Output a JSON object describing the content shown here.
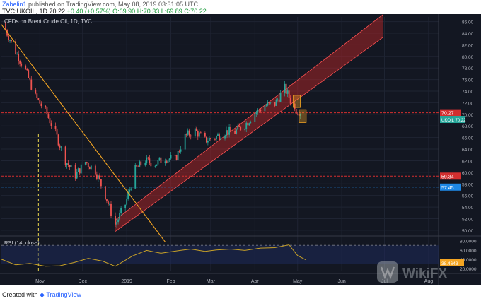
{
  "header": {
    "author": "Zabelin1",
    "published_text": "published on TradingView.com, May 08, 2019 03:31:05 UTC",
    "ticker": "TVC:UKOIL, 1D",
    "last": "70.22",
    "change": "+0.40 (+0.57%)",
    "open": "O:69.90",
    "high": "H:70.33",
    "low": "L:69.89",
    "close": "C:70.22"
  },
  "chart_data": {
    "type": "candlestick",
    "title": "CFDs on Brent Crude Oil, 1D, TVC",
    "x_tick_labels": [
      "Nov",
      "Dec",
      "2019",
      "Feb",
      "Mar",
      "Apr",
      "May",
      "Jun",
      "Jul",
      "Aug"
    ],
    "y_tick_labels": [
      "86.00",
      "84.00",
      "82.00",
      "80.00",
      "78.00",
      "76.00",
      "74.00",
      "72.00",
      "70.00",
      "68.00",
      "66.00",
      "64.00",
      "62.00",
      "60.00",
      "58.00",
      "56.00",
      "54.00",
      "52.00",
      "50.00"
    ],
    "ylim": [
      49.5,
      86.8
    ],
    "price_path": [
      {
        "date": "2018-10-08",
        "close": 84.5
      },
      {
        "date": "2018-10-15",
        "close": 80.8
      },
      {
        "date": "2018-10-22",
        "close": 77.5
      },
      {
        "date": "2018-10-29",
        "close": 73.0
      },
      {
        "date": "2018-11-05",
        "close": 70.5
      },
      {
        "date": "2018-11-12",
        "close": 66.8
      },
      {
        "date": "2018-11-19",
        "close": 62.0
      },
      {
        "date": "2018-11-26",
        "close": 59.5
      },
      {
        "date": "2018-12-03",
        "close": 61.8
      },
      {
        "date": "2018-12-10",
        "close": 60.3
      },
      {
        "date": "2018-12-17",
        "close": 56.0
      },
      {
        "date": "2018-12-24",
        "close": 51.0
      },
      {
        "date": "2018-12-31",
        "close": 54.5
      },
      {
        "date": "2019-01-07",
        "close": 60.5
      },
      {
        "date": "2019-01-14",
        "close": 62.0
      },
      {
        "date": "2019-01-21",
        "close": 61.5
      },
      {
        "date": "2019-01-28",
        "close": 62.5
      },
      {
        "date": "2019-02-04",
        "close": 62.2
      },
      {
        "date": "2019-02-11",
        "close": 66.2
      },
      {
        "date": "2019-02-18",
        "close": 67.2
      },
      {
        "date": "2019-02-25",
        "close": 65.5
      },
      {
        "date": "2019-03-04",
        "close": 66.0
      },
      {
        "date": "2019-03-11",
        "close": 67.0
      },
      {
        "date": "2019-03-18",
        "close": 67.0
      },
      {
        "date": "2019-03-25",
        "close": 68.2
      },
      {
        "date": "2019-04-01",
        "close": 70.2
      },
      {
        "date": "2019-04-08",
        "close": 71.5
      },
      {
        "date": "2019-04-15",
        "close": 71.8
      },
      {
        "date": "2019-04-22",
        "close": 74.5
      },
      {
        "date": "2019-04-29",
        "close": 70.8
      },
      {
        "date": "2019-05-06",
        "close": 70.22
      }
    ],
    "horizontal_levels": [
      {
        "label": "70.27",
        "value": 70.27,
        "color": "#d32f2f",
        "style": "dashed"
      },
      {
        "label": "59.34",
        "value": 59.34,
        "color": "#d32f2f",
        "style": "dashed"
      },
      {
        "label": "57.45",
        "value": 57.45,
        "color": "#1e88e5",
        "style": "dashed"
      }
    ],
    "price_label": {
      "text": "UKOIL",
      "value": 70.22,
      "value_text": "70.22",
      "color": "#26a69a"
    },
    "downtrend_line": {
      "from": {
        "date": "2018-10-05",
        "price": 85.5
      },
      "to": {
        "date": "2019-01-28",
        "price": 48.0
      },
      "color": "#f5a623"
    },
    "uptrend_channel": {
      "from": {
        "date": "2018-12-24",
        "lower": 49.8,
        "upper": 51.8
      },
      "to": {
        "date": "2019-06-30",
        "lower": 83.3,
        "upper": 87.2
      },
      "color": "#c62828"
    },
    "vertical_marker": {
      "date": "2018-10-31",
      "color": "#e8d44d",
      "style": "dashed"
    },
    "highlight_boxes": [
      {
        "from": "2019-04-29",
        "to": "2019-05-02",
        "low": 71.2,
        "high": 73.3,
        "color": "#f5a623"
      },
      {
        "from": "2019-05-03",
        "to": "2019-05-06",
        "low": 68.6,
        "high": 70.8,
        "color": "#f5a623"
      }
    ],
    "colors": {
      "background": "#131722",
      "up": "#26a69a",
      "down": "#ef5350"
    }
  },
  "rsi": {
    "title": "RSI (14, close)",
    "tick_labels": [
      "80.0000",
      "60.0000",
      "40.0000",
      "20.0000"
    ],
    "current_text": "38.4643",
    "ylim": [
      14,
      84
    ],
    "overbought": 70,
    "oversold": 30,
    "series": [
      {
        "date": "2018-10-05",
        "value": 40
      },
      {
        "date": "2018-10-15",
        "value": 28
      },
      {
        "date": "2018-10-25",
        "value": 31
      },
      {
        "date": "2018-11-05",
        "value": 25
      },
      {
        "date": "2018-11-15",
        "value": 26
      },
      {
        "date": "2018-11-25",
        "value": 33
      },
      {
        "date": "2018-12-05",
        "value": 42
      },
      {
        "date": "2018-12-15",
        "value": 36
      },
      {
        "date": "2018-12-24",
        "value": 25
      },
      {
        "date": "2019-01-05",
        "value": 47
      },
      {
        "date": "2019-01-15",
        "value": 59
      },
      {
        "date": "2019-01-25",
        "value": 53
      },
      {
        "date": "2019-02-05",
        "value": 58
      },
      {
        "date": "2019-02-15",
        "value": 62
      },
      {
        "date": "2019-02-25",
        "value": 57
      },
      {
        "date": "2019-03-05",
        "value": 60
      },
      {
        "date": "2019-03-15",
        "value": 62
      },
      {
        "date": "2019-03-25",
        "value": 59
      },
      {
        "date": "2019-04-05",
        "value": 64
      },
      {
        "date": "2019-04-15",
        "value": 65
      },
      {
        "date": "2019-04-25",
        "value": 71
      },
      {
        "date": "2019-05-01",
        "value": 48
      },
      {
        "date": "2019-05-07",
        "value": 38.5
      }
    ],
    "color": "#c9a227"
  },
  "footer": {
    "created_with": "Created with",
    "brand": "TradingView"
  },
  "watermark": {
    "text": "WikiFX"
  }
}
